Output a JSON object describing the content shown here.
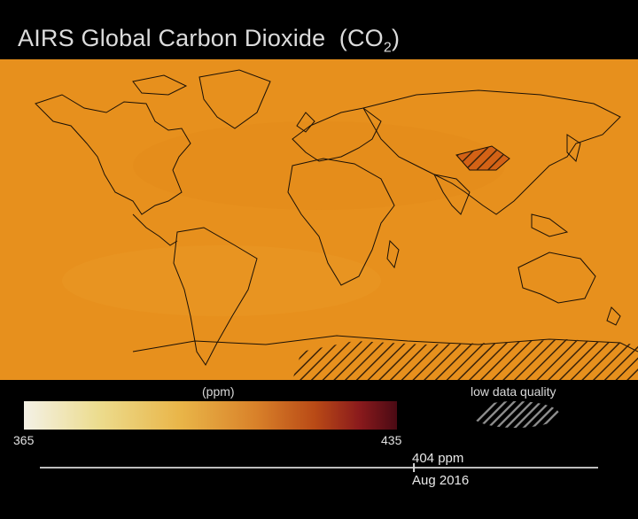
{
  "title": {
    "text": "AIRS Global Carbon Dioxide",
    "formula_prefix": "(CO",
    "formula_sub": "2",
    "formula_suffix": ")"
  },
  "map": {
    "variable": "Carbon Dioxide",
    "ocean_land_fill_color": "#e7901d",
    "high_concentration_color": "#d36216",
    "border_color": "#1a1006",
    "low_quality_regions": [
      "Tibetan Plateau",
      "Antarctica"
    ]
  },
  "colorbar": {
    "unit_label": "(ppm)",
    "min_label": "365",
    "max_label": "435",
    "min_value": 365,
    "max_value": 435,
    "colors": [
      "#f4f1e6",
      "#ecdc8e",
      "#e9b548",
      "#d9822a",
      "#b94a16",
      "#8a1a1c",
      "#4a0a14"
    ]
  },
  "legend": {
    "low_quality_label": "low data quality"
  },
  "timeline": {
    "value_label": "404 ppm",
    "date_label": "Aug 2016",
    "current_value": 404,
    "progress_fraction": 0.67
  }
}
